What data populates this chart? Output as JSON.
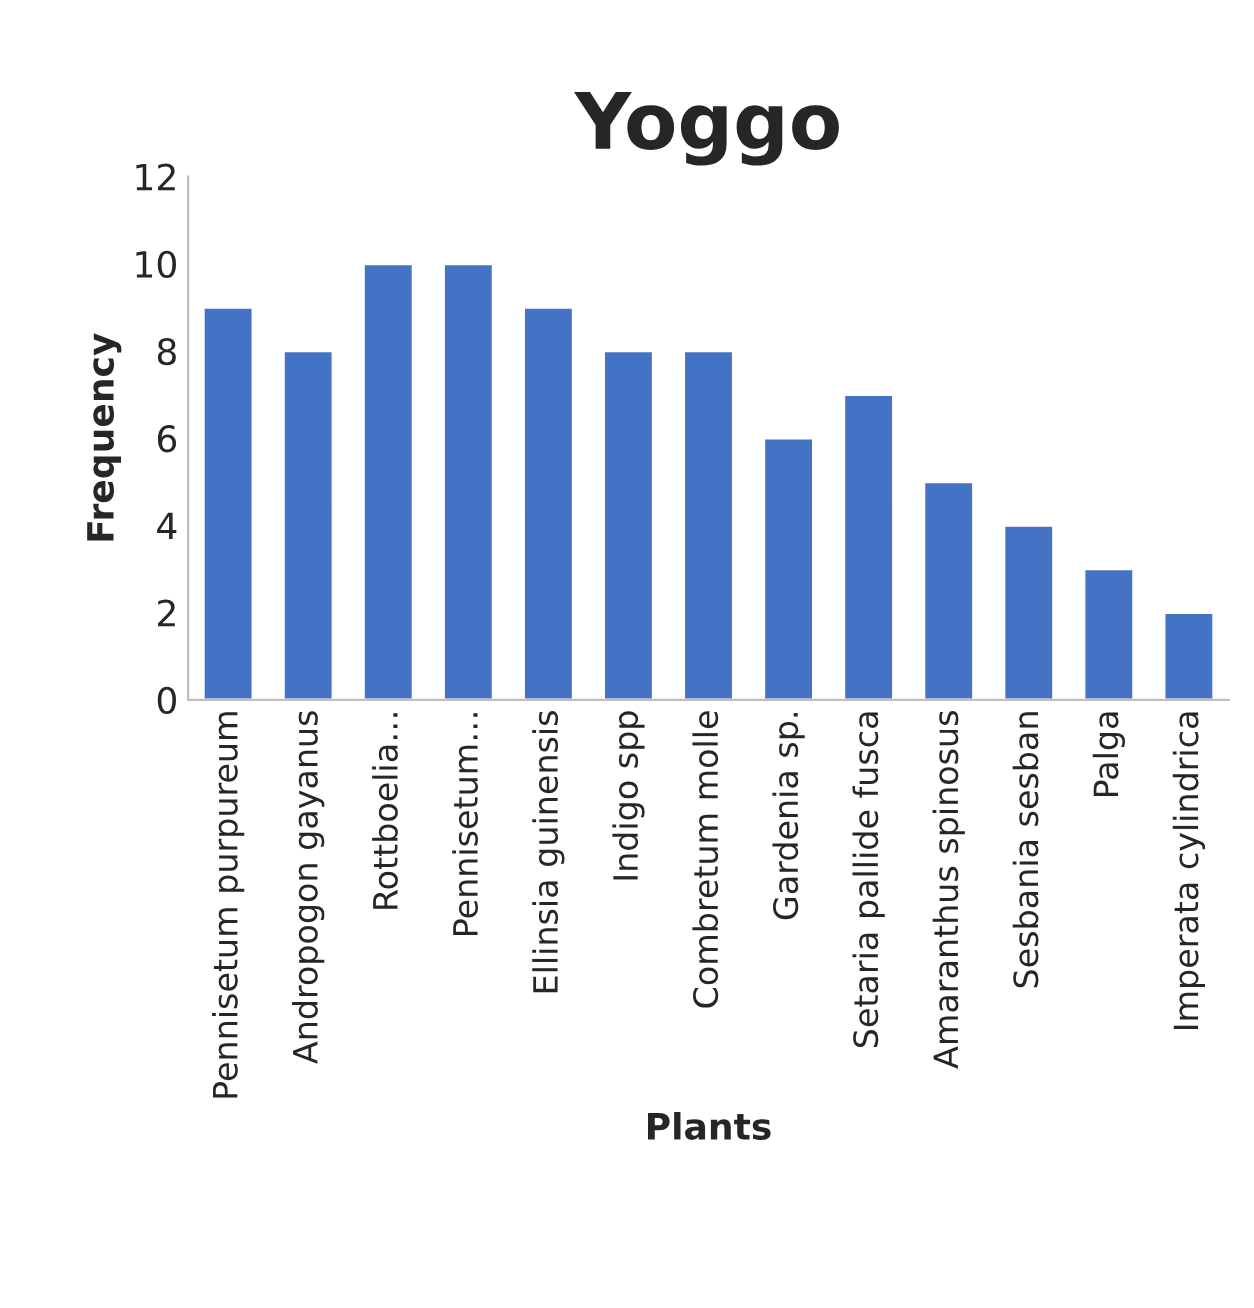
{
  "chart_data": {
    "type": "bar",
    "title": "Yoggo",
    "xlabel": "Plants",
    "ylabel": "Frequency",
    "categories": [
      "Pennisetum purpureum",
      "Andropogon gayanus",
      "Rottboelia…",
      "Pennisetum…",
      "Ellinsia guinensis",
      "Indigo spp",
      "Combretum molle",
      "Gardenia sp.",
      "Setaria pallide fusca",
      "Amaranthus spinosus",
      "Sesbania sesban",
      "Palga",
      "Imperata cylindrica"
    ],
    "values": [
      9,
      8,
      10,
      10,
      9,
      8,
      8,
      6,
      7,
      5,
      4,
      3,
      2
    ],
    "color": "#4472c4",
    "ylim": [
      0,
      12
    ],
    "yticks": [
      0,
      2,
      4,
      6,
      8,
      10,
      12
    ],
    "grid": false,
    "legend": false
  }
}
